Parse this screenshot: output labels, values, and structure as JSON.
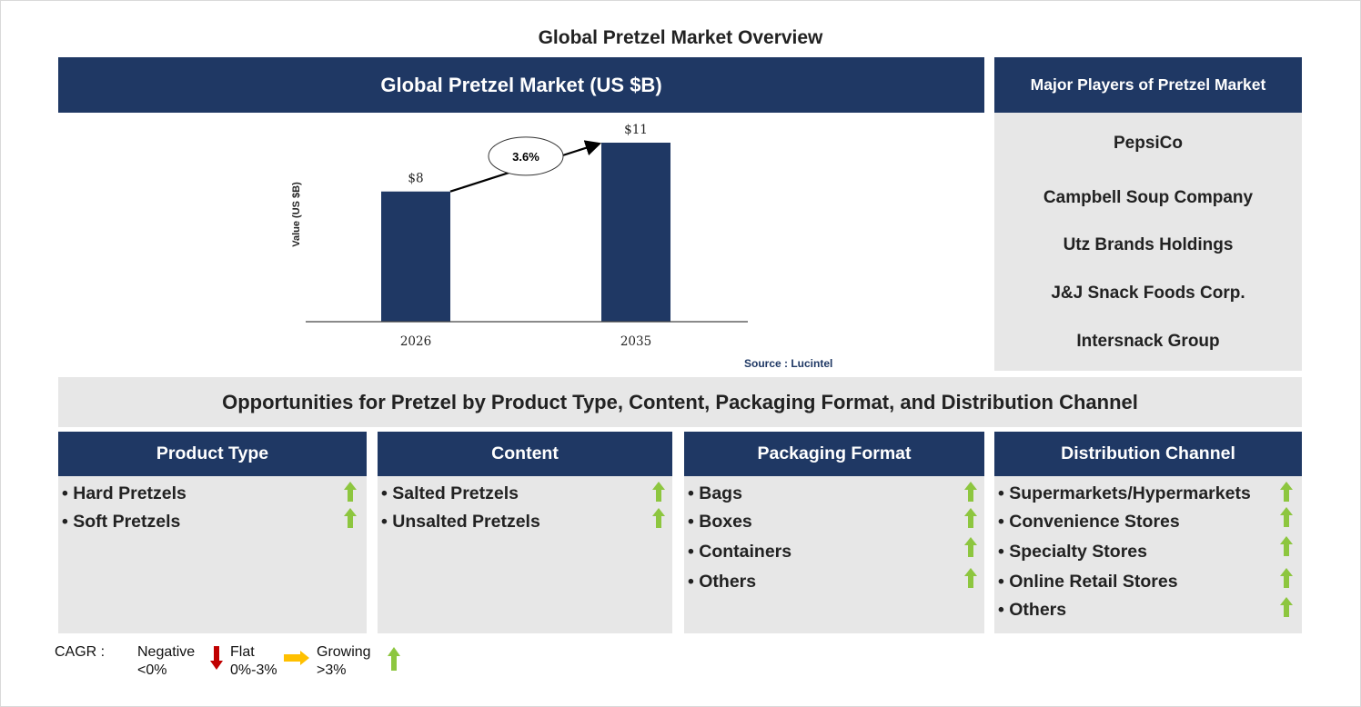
{
  "page_title": "Global Pretzel Market Overview",
  "market_header": "Global Pretzel Market (US $B)",
  "players_header": "Major Players of Pretzel Market",
  "players": [
    "PepsiCo",
    "Campbell Soup Company",
    "Utz Brands Holdings",
    "J&J Snack Foods Corp.",
    "Intersnack Group"
  ],
  "chart_data": {
    "type": "bar",
    "categories": [
      "2026",
      "2035"
    ],
    "values": [
      8,
      11
    ],
    "data_labels": [
      "$8",
      "$11"
    ],
    "ylabel": "Value (US $B)",
    "cagr_label": "3.6%",
    "ylim": [
      0,
      11
    ],
    "bar_color": "#1f3864",
    "grid": false
  },
  "source": "Source : Lucintel",
  "opportunities_title": "Opportunities for Pretzel by Product Type, Content, Packaging Format, and Distribution Channel",
  "categories": [
    {
      "title": "Product Type",
      "items": [
        "Hard Pretzels",
        "Soft Pretzels"
      ]
    },
    {
      "title": "Content",
      "items": [
        "Salted Pretzels",
        "Unsalted Pretzels"
      ]
    },
    {
      "title": "Packaging Format",
      "items": [
        "Bags",
        "Boxes",
        "Containers",
        "Others"
      ]
    },
    {
      "title": "Distribution Channel",
      "items": [
        "Supermarkets/Hypermarkets",
        "Convenience Stores",
        "Specialty Stores",
        "Online Retail Stores",
        "Others"
      ]
    }
  ],
  "legend": {
    "cagr": "CAGR :",
    "negative": "Negative",
    "negative_range": "<0%",
    "flat": "Flat",
    "flat_range": "0%-3%",
    "growing": "Growing",
    "growing_range": ">3%"
  },
  "colors": {
    "navy": "#1f3864",
    "panel_grey": "#e7e7e7",
    "growing_arrow": "#8dc63f",
    "negative_arrow": "#c00000",
    "flat_arrow": "#ffc000"
  },
  "icons": {
    "growing": "up-arrow-icon",
    "negative": "down-arrow-icon",
    "flat": "right-arrow-icon"
  }
}
